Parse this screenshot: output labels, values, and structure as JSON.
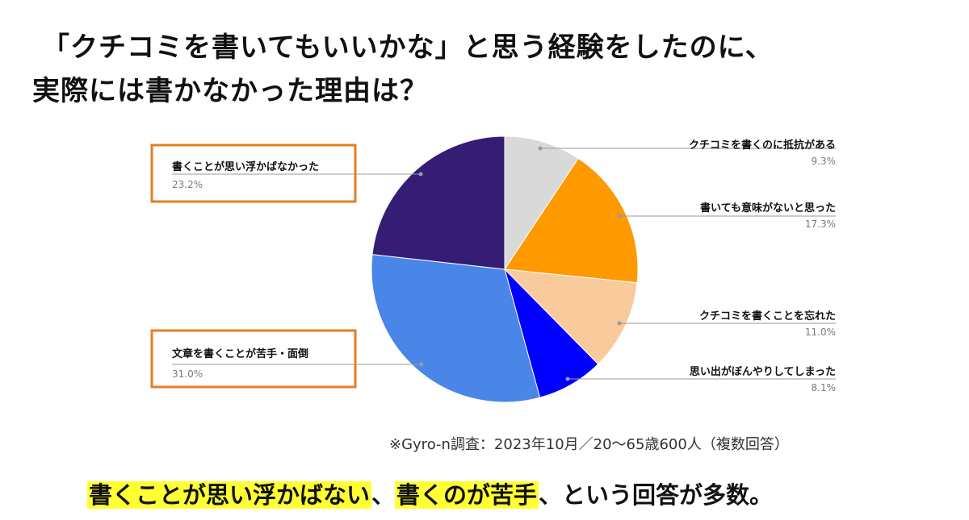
{
  "title": {
    "line1": "「クチコミを書いてもいいかな」と思う経験をしたのに、",
    "line2": "実際には書かなかった理由は？"
  },
  "chart_data": {
    "type": "pie",
    "categories": [
      "クチコミを書くのに抵抗がある",
      "書いても意味がないと思った",
      "クチコミを書くことを忘れた",
      "思い出がぼんやりしてしまった",
      "文章を書くことが苦手・面倒",
      "書くことが思い浮かばなかった"
    ],
    "values": [
      9.3,
      17.3,
      11.0,
      8.1,
      31.0,
      23.2
    ],
    "value_labels": [
      "9.3%",
      "17.3%",
      "11.0%",
      "8.1%",
      "31.0%",
      "23.2%"
    ],
    "colors": [
      "#d9d9d9",
      "#ff9900",
      "#f9cb9c",
      "#0000ff",
      "#4a86e8",
      "#351c75"
    ],
    "highlighted": [
      "文章を書くことが苦手・面倒",
      "書くことが思い浮かばなかった"
    ],
    "highlight_color": "#e67e22",
    "start_angle": "12 o'clock, clockwise"
  },
  "note": "※Gyro-n調査：2023年10月／20〜65歳600人（複数回答）",
  "conclusion": {
    "part1": "書くことが思い浮かばない",
    "sep1": "、",
    "part2": "書くのが苦手",
    "part3": "、という回答が多数。"
  }
}
